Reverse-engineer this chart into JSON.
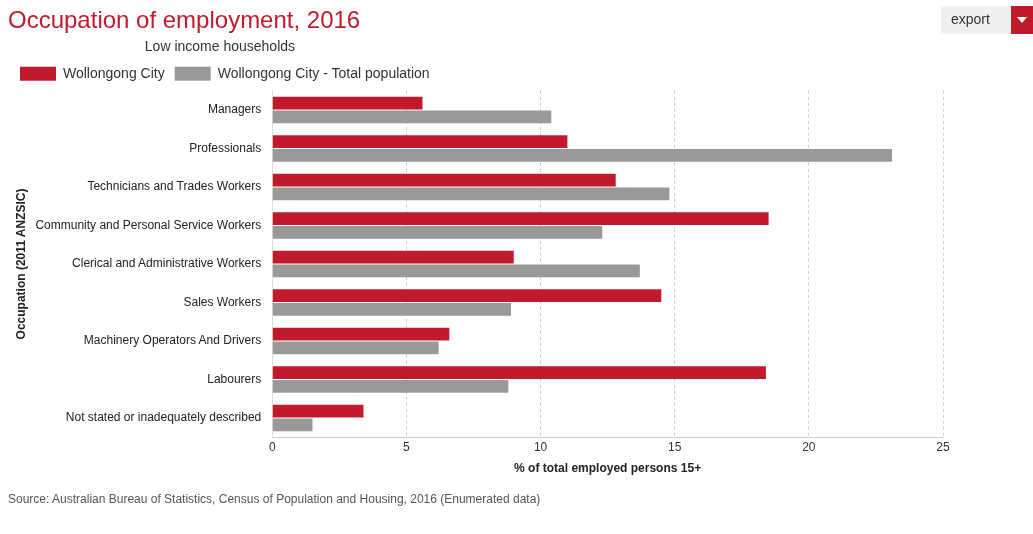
{
  "chart_data": {
    "type": "bar",
    "orientation": "horizontal",
    "title": "Occupation of employment, 2016",
    "legend_title": "Low income households",
    "xlabel": "% of total employed persons 15+",
    "ylabel": "Occupation (2011 ANZSIC)",
    "categories": [
      "Managers",
      "Professionals",
      "Technicians and Trades Workers",
      "Community and Personal Service Workers",
      "Clerical and Administrative Workers",
      "Sales Workers",
      "Machinery Operators And Drivers",
      "Labourers",
      "Not stated or inadequately described"
    ],
    "series": [
      {
        "name": "Wollongong City",
        "color": "#c01a2c",
        "values": [
          5.6,
          11.0,
          12.8,
          18.5,
          9.0,
          14.5,
          6.6,
          18.4,
          3.4
        ]
      },
      {
        "name": "Wollongong City - Total population",
        "color": "#999999",
        "values": [
          10.4,
          23.1,
          14.8,
          12.3,
          13.7,
          8.9,
          6.2,
          8.8,
          1.5
        ]
      }
    ],
    "xlim": [
      0,
      25
    ],
    "xticks": [
      0,
      5,
      10,
      15,
      20,
      25
    ],
    "grid": "x",
    "legend": "top left",
    "annotations": [
      "export",
      "Source: Australian Bureau of Statistics, Census of Population and Housing, 2016 (Enumerated data)"
    ]
  }
}
